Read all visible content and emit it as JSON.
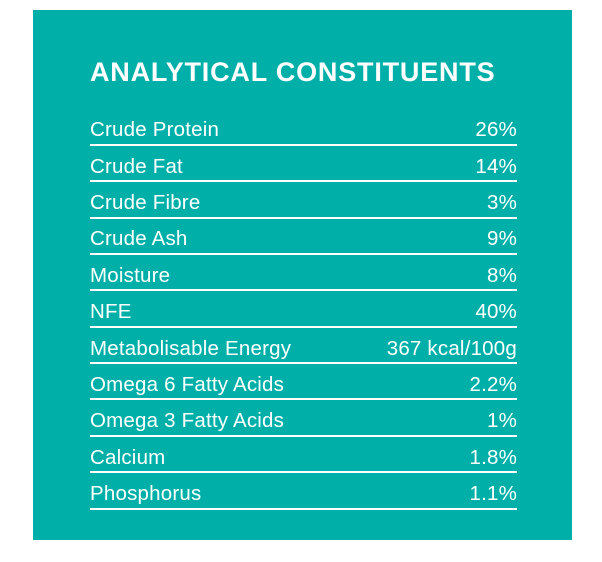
{
  "panel": {
    "title": "ANALYTICAL CONSTITUENTS",
    "background_color": "#00b0a8",
    "text_color": "#ffffff",
    "rows": [
      {
        "label": "Crude Protein",
        "value": "26%"
      },
      {
        "label": "Crude Fat",
        "value": "14%"
      },
      {
        "label": "Crude Fibre",
        "value": "3%"
      },
      {
        "label": "Crude Ash",
        "value": "9%"
      },
      {
        "label": "Moisture",
        "value": "8%"
      },
      {
        "label": "NFE",
        "value": "40%"
      },
      {
        "label": "Metabolisable Energy",
        "value": "367 kcal/100g"
      },
      {
        "label": "Omega 6 Fatty Acids",
        "value": "2.2%"
      },
      {
        "label": "Omega 3 Fatty Acids",
        "value": "1%"
      },
      {
        "label": "Calcium",
        "value": "1.8%"
      },
      {
        "label": "Phosphorus",
        "value": "1.1%"
      }
    ]
  }
}
